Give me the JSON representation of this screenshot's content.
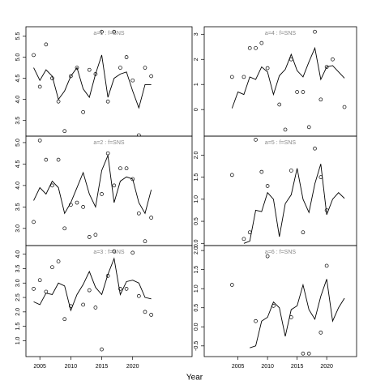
{
  "xlabel": "Year",
  "chart_data": [
    {
      "type": "line",
      "title": "a=1 : f=SNS",
      "xlim": [
        2002.75,
        2029.6
      ],
      "ylim": [
        3.13,
        5.72
      ],
      "yticks": [
        3.5,
        {
          "value": 4,
          "label": "4.0"
        },
        4.5,
        {
          "value": 5,
          "label": "5.0"
        },
        5.5
      ],
      "x": [
        2004,
        2005,
        2006,
        2007,
        2008,
        2009,
        2010,
        2011,
        2012,
        2013,
        2014,
        2015,
        2016,
        2017,
        2018,
        2019,
        2020,
        2021,
        2022,
        2023
      ],
      "series": [
        {
          "style": "line",
          "color": "#000000",
          "values": [
            4.75,
            4.45,
            4.7,
            4.55,
            4.0,
            4.2,
            4.55,
            4.75,
            4.25,
            4.05,
            4.6,
            5.05,
            4.05,
            4.5,
            4.6,
            4.65,
            4.2,
            3.8,
            4.35,
            4.35
          ]
        },
        {
          "style": "points",
          "color": "#000000",
          "values": [
            5.05,
            4.3,
            5.3,
            4.5,
            3.95,
            3.25,
            4.55,
            4.75,
            3.7,
            4.7,
            4.6,
            5.6,
            3.95,
            5.6,
            4.75,
            5.0,
            4.45,
            3.15,
            4.75,
            4.55
          ]
        }
      ]
    },
    {
      "type": "line",
      "title": "a=2 : f=SNS",
      "xlim": [
        2002.75,
        2029.6
      ],
      "ylim": [
        2.6,
        5.15
      ],
      "yticks": [
        {
          "value": 3,
          "label": "3.0"
        },
        3.5,
        {
          "value": 4,
          "label": "4.0"
        },
        4.5,
        {
          "value": 5,
          "label": "5.0"
        }
      ],
      "x": [
        2004,
        2005,
        2006,
        2007,
        2008,
        2009,
        2010,
        2011,
        2012,
        2013,
        2014,
        2015,
        2016,
        2017,
        2018,
        2019,
        2020,
        2021,
        2022,
        2023
      ],
      "series": [
        {
          "style": "line",
          "color": "#000000",
          "values": [
            3.65,
            3.95,
            3.8,
            4.1,
            3.95,
            3.35,
            3.6,
            3.95,
            4.3,
            3.8,
            3.5,
            4.35,
            4.7,
            3.6,
            4.1,
            4.2,
            4.15,
            3.6,
            3.35,
            3.9
          ]
        },
        {
          "style": "points",
          "color": "#000000",
          "values": [
            3.15,
            5.05,
            4.6,
            4.0,
            4.6,
            3.0,
            3.55,
            3.6,
            3.5,
            2.8,
            2.85,
            3.8,
            4.75,
            4.0,
            4.4,
            4.4,
            4.15,
            3.35,
            2.7,
            3.25
          ]
        }
      ]
    },
    {
      "type": "line",
      "title": "a=3 : f=SNS",
      "xlim": [
        2002.75,
        2029.6
      ],
      "ylim": [
        0.45,
        4.3
      ],
      "xticks": [
        2005,
        2010,
        2015,
        2020
      ],
      "yticks": [
        {
          "value": 1,
          "label": "1.0"
        },
        1.5,
        {
          "value": 2,
          "label": "2.0"
        },
        2.5,
        {
          "value": 3,
          "label": "3.0"
        },
        3.5,
        {
          "value": 4,
          "label": "4.0"
        }
      ],
      "x": [
        2004,
        2005,
        2006,
        2007,
        2008,
        2009,
        2010,
        2011,
        2012,
        2013,
        2014,
        2015,
        2016,
        2017,
        2018,
        2019,
        2020,
        2021,
        2022,
        2023
      ],
      "series": [
        {
          "style": "line",
          "color": "#000000",
          "values": [
            2.35,
            2.25,
            2.65,
            2.6,
            3.0,
            2.9,
            2.05,
            2.6,
            2.95,
            3.4,
            2.85,
            2.6,
            3.3,
            3.85,
            2.6,
            3.05,
            3.1,
            3.0,
            2.5,
            2.45
          ]
        },
        {
          "style": "points",
          "color": "#000000",
          "values": [
            2.8,
            3.1,
            2.7,
            3.55,
            3.75,
            1.75,
            2.2,
            null,
            2.25,
            2.75,
            2.15,
            0.7,
            3.25,
            4.1,
            2.8,
            2.8,
            4.05,
            2.55,
            2.0,
            1.9
          ]
        }
      ]
    },
    {
      "type": "line",
      "title": "a=4 : f=SNS",
      "xlim": [
        1999.3,
        2025.05
      ],
      "ylim": [
        -1.06,
        3.3
      ],
      "yticks": [
        0,
        1,
        2,
        3
      ],
      "x": [
        2004,
        2005,
        2006,
        2007,
        2008,
        2009,
        2010,
        2011,
        2012,
        2013,
        2014,
        2015,
        2016,
        2017,
        2018,
        2019,
        2020,
        2021,
        2022,
        2023
      ],
      "series": [
        {
          "style": "line",
          "color": "#000000",
          "values": [
            0.05,
            0.7,
            0.6,
            1.3,
            1.2,
            1.7,
            1.5,
            0.6,
            1.35,
            1.6,
            2.2,
            1.55,
            1.3,
            1.9,
            2.45,
            1.2,
            1.7,
            1.75,
            1.5,
            1.25
          ]
        },
        {
          "style": "points",
          "color": "#000000",
          "values": [
            1.3,
            null,
            1.3,
            2.45,
            2.45,
            2.65,
            1.65,
            null,
            0.2,
            -0.8,
            2.0,
            0.7,
            0.7,
            -0.7,
            3.1,
            0.4,
            1.7,
            2.0,
            null,
            0.1
          ]
        }
      ]
    },
    {
      "type": "line",
      "title": "a=5 : f=SNS",
      "xlim": [
        1999.3,
        2025.05
      ],
      "ylim": [
        -0.05,
        2.43
      ],
      "yticks": [
        {
          "value": 0,
          "label": "0.0"
        },
        0.5,
        {
          "value": 1,
          "label": "1.0"
        },
        1.5,
        {
          "value": 2,
          "label": "2.0"
        }
      ],
      "x": [
        2004,
        2005,
        2006,
        2007,
        2008,
        2009,
        2010,
        2011,
        2012,
        2013,
        2014,
        2015,
        2016,
        2017,
        2018,
        2019,
        2020,
        2021,
        2022,
        2023
      ],
      "series": [
        {
          "style": "line",
          "color": "#000000",
          "values": [
            null,
            null,
            0.0,
            0.05,
            0.75,
            0.72,
            1.15,
            1.0,
            0.15,
            0.9,
            1.1,
            1.7,
            1.0,
            0.7,
            1.35,
            1.8,
            0.65,
            1.0,
            1.15,
            1.02
          ]
        },
        {
          "style": "points",
          "color": "#000000",
          "values": [
            1.55,
            null,
            0.1,
            0.25,
            2.35,
            1.62,
            1.3,
            null,
            null,
            null,
            1.65,
            null,
            0.25,
            null,
            2.15,
            1.5,
            0.75,
            null,
            null,
            null
          ]
        }
      ]
    },
    {
      "type": "line",
      "title": "a=6 : f=SNS",
      "xlim": [
        1999.3,
        2025.05
      ],
      "ylim": [
        -0.78,
        2.13
      ],
      "xticks": [
        2005,
        2010,
        2015,
        2020
      ],
      "yticks": [
        -0.5,
        {
          "value": 0,
          "label": "0.0"
        },
        0.5,
        {
          "value": 1,
          "label": "1.0"
        },
        1.5,
        {
          "value": 2,
          "label": "2.0"
        }
      ],
      "x": [
        2004,
        2005,
        2006,
        2007,
        2008,
        2009,
        2010,
        2011,
        2012,
        2013,
        2014,
        2015,
        2016,
        2017,
        2018,
        2019,
        2020,
        2021,
        2022,
        2023
      ],
      "series": [
        {
          "style": "line",
          "color": "#000000",
          "values": [
            null,
            null,
            null,
            -0.55,
            -0.5,
            0.15,
            0.25,
            0.65,
            0.5,
            -0.25,
            0.45,
            0.55,
            1.1,
            0.45,
            0.2,
            0.8,
            1.25,
            0.15,
            0.5,
            0.75
          ]
        },
        {
          "style": "points",
          "color": "#000000",
          "values": [
            1.1,
            null,
            null,
            null,
            0.15,
            null,
            1.85,
            0.55,
            null,
            null,
            0.25,
            null,
            -0.7,
            -0.7,
            null,
            -0.15,
            1.6,
            null,
            null,
            null
          ]
        }
      ]
    }
  ]
}
